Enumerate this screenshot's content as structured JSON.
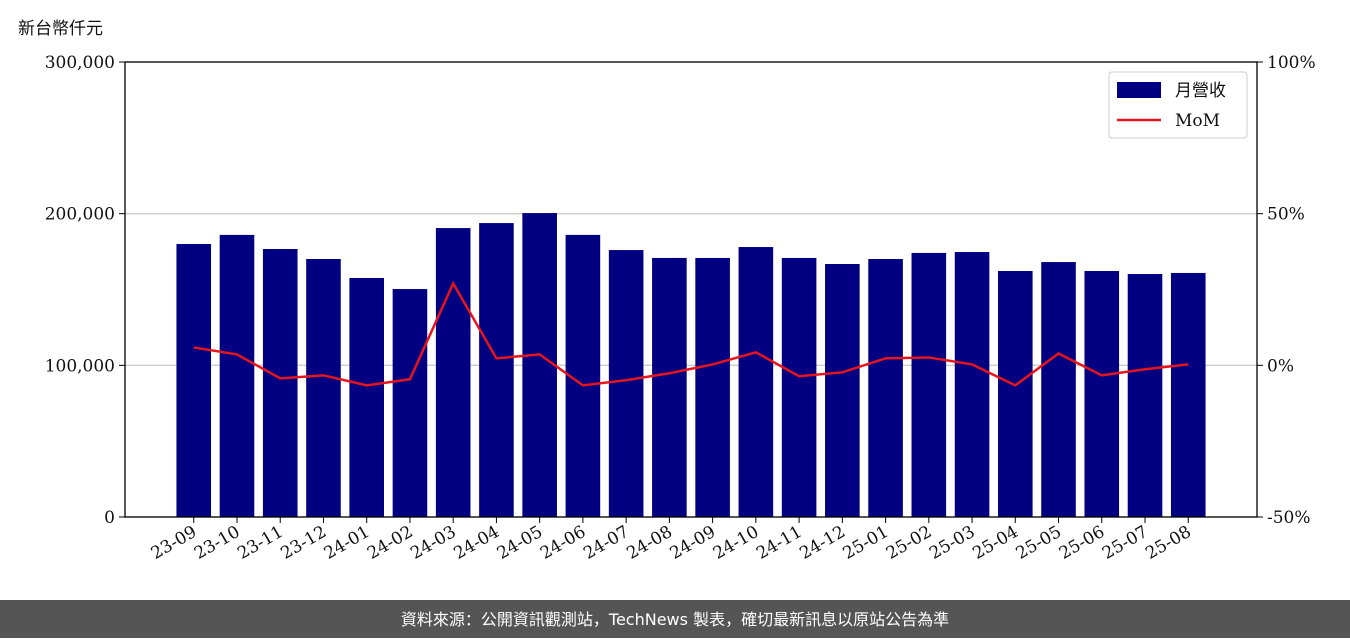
{
  "chart_data": {
    "type": "bar_line",
    "y_label": "新台幣仟元",
    "categories": [
      "23-09",
      "23-10",
      "23-11",
      "23-12",
      "24-01",
      "24-02",
      "24-03",
      "24-04",
      "24-05",
      "24-06",
      "24-07",
      "24-08",
      "24-09",
      "24-10",
      "24-11",
      "24-12",
      "25-01",
      "25-02",
      "25-03",
      "25-04",
      "25-05",
      "25-06",
      "25-07",
      "25-08"
    ],
    "series": [
      {
        "name": "月營收",
        "type": "bar",
        "color": "#000080",
        "values": [
          180000,
          186000,
          176700,
          170100,
          157600,
          150300,
          190500,
          193800,
          200400,
          186000,
          176000,
          170800,
          170800,
          178000,
          170800,
          166800,
          170100,
          174100,
          174700,
          162200,
          168100,
          162200,
          160200,
          160900
        ]
      },
      {
        "name": "MoM",
        "type": "line",
        "color": "#e8141c",
        "axis": "y2",
        "values": [
          5.9,
          3.6,
          -4.3,
          -3.3,
          -6.6,
          -4.6,
          27,
          2.3,
          3.6,
          -6.6,
          -4.9,
          -2.6,
          0.3,
          4.3,
          -3.6,
          -2.3,
          2.3,
          2.6,
          0.3,
          -6.6,
          3.9,
          -3.3,
          -1.3,
          0.3
        ]
      }
    ],
    "ylim": [
      0,
      300000
    ],
    "yticks": [
      0,
      {
        "value": 100000,
        "label": "100,000"
      },
      {
        "value": 200000,
        "label": "200,000"
      },
      {
        "value": 300000,
        "label": "300,000"
      }
    ],
    "y2lim": [
      -50,
      100
    ],
    "y2ticks": [
      {
        "value": -50,
        "label": "-50%"
      },
      {
        "value": 0,
        "label": "0%"
      },
      {
        "value": 50,
        "label": "50%"
      },
      {
        "value": 100,
        "label": "100%"
      }
    ],
    "grid": true,
    "legend": "upper right"
  },
  "footer": {
    "text": "資料來源：公開資訊觀測站，TechNews 製表，確切最新訊息以原站公告為準"
  }
}
